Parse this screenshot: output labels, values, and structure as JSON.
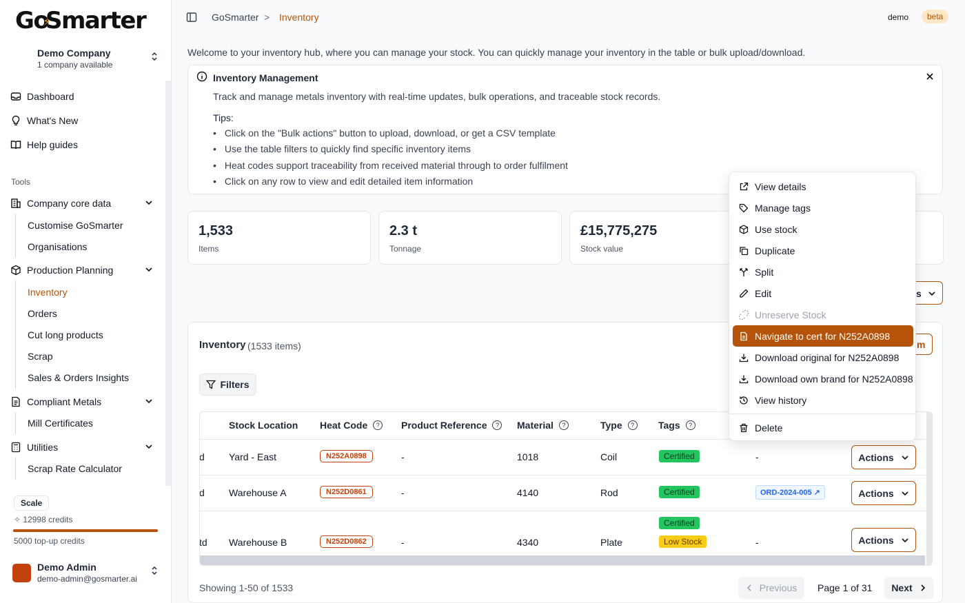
{
  "app": {
    "logo_text_left": "Go",
    "logo_text_right": "Smarter",
    "company_name": "Demo Company",
    "company_sub": "1 company available"
  },
  "sidebar": {
    "main": [
      {
        "label": "Dashboard"
      },
      {
        "label": "What's New"
      },
      {
        "label": "Help guides"
      }
    ],
    "tools_label": "Tools",
    "groups": {
      "company_core": {
        "label": "Company core data",
        "items": [
          "Customise GoSmarter",
          "Organisations"
        ]
      },
      "production": {
        "label": "Production Planning",
        "items": [
          "Inventory",
          "Orders",
          "Cut long products",
          "Scrap",
          "Sales & Orders Insights"
        ]
      },
      "compliant": {
        "label": "Compliant Metals",
        "items": [
          "Mill Certificates"
        ]
      },
      "utilities": {
        "label": "Utilities",
        "items": [
          "Scrap Rate Calculator"
        ]
      }
    },
    "plan": "Scale",
    "credits": "12998 credits",
    "credits_fraction": 1.0,
    "topup": "5000 top-up credits",
    "user_name": "Demo Admin",
    "user_email": "demo-admin@gosmarter.ai"
  },
  "header": {
    "breadcrumb_root": "GoSmarter",
    "breadcrumb_sep": ">",
    "breadcrumb_current": "Inventory",
    "env": "demo",
    "badge": "beta"
  },
  "welcome": "Welcome to your inventory hub, where you can manage your stock. You can quickly manage your inventory in the table or bulk upload/download.",
  "info": {
    "title": "Inventory Management",
    "desc": "Track and manage metals inventory with real-time updates, bulk operations, and traceable stock records.",
    "tips_label": "Tips:",
    "tips": [
      "Click on the \"Bulk actions\" button to upload, download, or get a CSV template",
      "Use the table filters to quickly find specific inventory items",
      "Heat codes support traceability from received material through to order fulfilment",
      "Click on any row to view and edit detailed item information"
    ]
  },
  "stats": [
    {
      "value": "1,533",
      "label": "Items"
    },
    {
      "value": "2.3 t",
      "label": "Tonnage"
    },
    {
      "value": "£15,775,275",
      "label": "Stock value"
    }
  ],
  "bulk_partial": "s",
  "inventory": {
    "title": "Inventory",
    "count": "(1533 items)",
    "add_partial": "m",
    "filters_label": "Filters",
    "columns": [
      "Stock Location",
      "Heat Code",
      "Product Reference",
      "Material",
      "Type",
      "Tags"
    ],
    "rows": [
      {
        "prefix": "d",
        "location": "Yard - East",
        "heat": "N252A0898",
        "ref": "-",
        "material": "1018",
        "type": "Coil",
        "tags": [
          "Certified"
        ],
        "order": "-",
        "action": "Actions"
      },
      {
        "prefix": "d",
        "location": "Warehouse A",
        "heat": "N252D0861",
        "ref": "-",
        "material": "4140",
        "type": "Rod",
        "tags": [
          "Certified"
        ],
        "order": "ORD-2024-005",
        "action": "Actions"
      },
      {
        "prefix": "td",
        "location": "Warehouse B",
        "heat": "N252D0862",
        "ref": "-",
        "material": "4340",
        "type": "Plate",
        "tags": [
          "Certified",
          "Low Stock"
        ],
        "order": "-",
        "action": "Actions"
      }
    ],
    "showing": "Showing 1-50 of 1533",
    "prev": "Previous",
    "page": "Page 1 of 31",
    "next": "Next"
  },
  "menu": {
    "items": [
      {
        "label": "View details",
        "icon": "external-link-icon"
      },
      {
        "label": "Manage tags",
        "icon": "tag-icon"
      },
      {
        "label": "Use stock",
        "icon": "package-icon"
      },
      {
        "label": "Duplicate",
        "icon": "copy-icon"
      },
      {
        "label": "Split",
        "icon": "split-icon"
      },
      {
        "label": "Edit",
        "icon": "pencil-icon"
      },
      {
        "label": "Unreserve Stock",
        "icon": "unlink-icon"
      },
      {
        "label": "Navigate to cert for N252A0898",
        "icon": "file-icon"
      },
      {
        "label": "Download original for N252A0898",
        "icon": "download-icon"
      },
      {
        "label": "Download own brand for N252A0898",
        "icon": "download-icon"
      },
      {
        "label": "View history",
        "icon": "history-icon"
      },
      {
        "label": "Delete",
        "icon": "trash-icon"
      }
    ]
  },
  "colors": {
    "accent": "#b45309",
    "certified": "#22c55e",
    "low_stock": "#facc15"
  }
}
